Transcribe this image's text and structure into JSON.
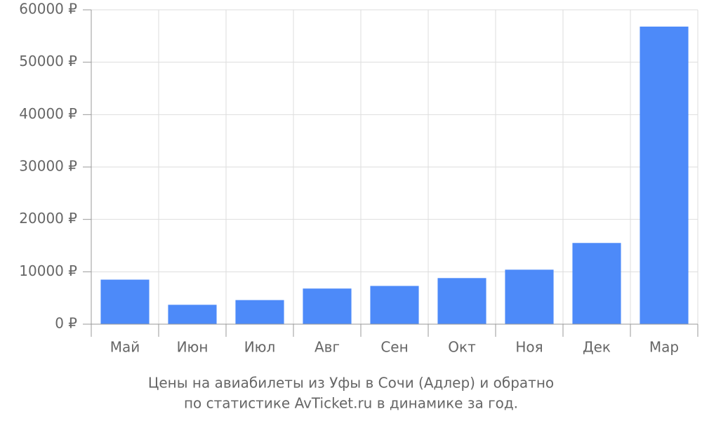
{
  "chart_data": {
    "type": "bar",
    "title": "Цены на авиабилеты из Уфы в Сочи (Адлер) и обратно",
    "subtitle": "по статистике AvTicket.ru в динамике за год.",
    "categories": [
      "Май",
      "Июн",
      "Июл",
      "Авг",
      "Сен",
      "Окт",
      "Ноя",
      "Дек",
      "Мар"
    ],
    "values": [
      8500,
      3700,
      4600,
      6800,
      7300,
      8800,
      10400,
      15500,
      56800
    ],
    "color": "#4d8af9",
    "ylim": [
      0,
      60000
    ],
    "yticks": [
      {
        "value": 0,
        "label": "0 ₽"
      },
      {
        "value": 10000,
        "label": "10000 ₽"
      },
      {
        "value": 20000,
        "label": "20000 ₽"
      },
      {
        "value": 30000,
        "label": "30000 ₽"
      },
      {
        "value": 40000,
        "label": "40000 ₽"
      },
      {
        "value": 50000,
        "label": "50000 ₽"
      },
      {
        "value": 60000,
        "label": "60000 ₽"
      }
    ],
    "grid": true
  }
}
